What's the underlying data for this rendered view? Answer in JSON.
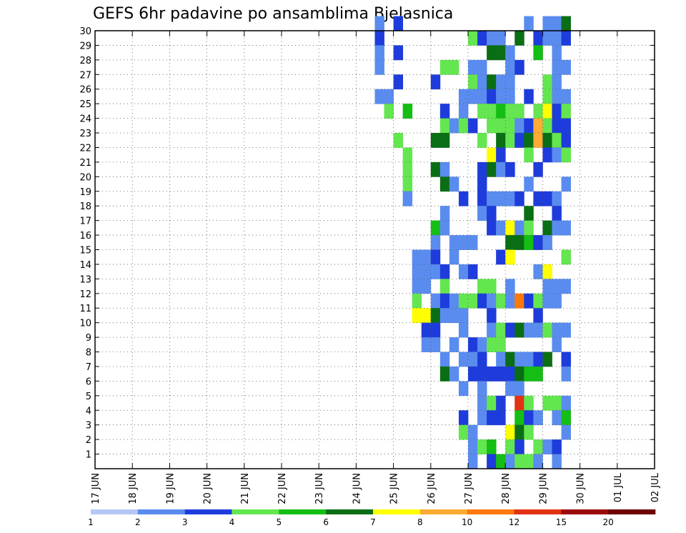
{
  "chart_data": {
    "type": "heatmap",
    "title": "GEFS 6hr padavine po ansamblima Bjelasnica",
    "x_tick_labels": [
      "17 JUN",
      "18 JUN",
      "19 JUN",
      "20 JUN",
      "21 JUN",
      "22 JUN",
      "23 JUN",
      "24 JUN",
      "25 JUN",
      "26 JUN",
      "27 JUN",
      "28 JUN",
      "29 JUN",
      "30 JUN",
      "01 JUL",
      "02 JUL"
    ],
    "y_tick_labels": [
      "1",
      "2",
      "3",
      "4",
      "5",
      "6",
      "7",
      "8",
      "9",
      "10",
      "11",
      "12",
      "13",
      "14",
      "15",
      "16",
      "17",
      "18",
      "19",
      "20",
      "21",
      "22",
      "23",
      "24",
      "25",
      "26",
      "27",
      "28",
      "29",
      "30"
    ],
    "x_range": [
      "17 JUN 00z",
      "02 JUL 00z"
    ],
    "y_range": [
      0,
      30
    ],
    "grid": true,
    "color_scale": {
      "labels": [
        "1",
        "2",
        "3",
        "4",
        "5",
        "6",
        "7",
        "8",
        "10",
        "12",
        "15",
        "20"
      ],
      "colors": [
        "#b4c8f5",
        "#5a8cf0",
        "#1e3cdc",
        "#64e650",
        "#14be14",
        "#0a6e14",
        "#ffff00",
        "#ffaa32",
        "#ff780a",
        "#e13214",
        "#9b0a0a",
        "#6e0000"
      ]
    },
    "cells": [
      [
        2,
        30,
        1
      ],
      [
        2,
        29,
        2
      ],
      [
        2,
        28,
        1
      ],
      [
        2,
        27,
        1
      ],
      [
        2,
        25,
        1
      ],
      [
        3,
        25,
        1
      ],
      [
        3,
        24,
        3
      ],
      [
        4,
        30,
        2
      ],
      [
        4,
        28,
        2
      ],
      [
        4,
        26,
        2
      ],
      [
        4,
        22,
        3
      ],
      [
        5,
        24,
        4
      ],
      [
        5,
        21,
        3
      ],
      [
        5,
        20,
        3
      ],
      [
        5,
        19,
        3
      ],
      [
        5,
        18,
        1
      ],
      [
        6,
        14,
        1
      ],
      [
        6,
        13,
        1
      ],
      [
        6,
        12,
        1
      ],
      [
        6,
        11,
        3
      ],
      [
        6,
        10,
        6
      ],
      [
        7,
        14,
        1
      ],
      [
        7,
        13,
        1
      ],
      [
        7,
        12,
        1
      ],
      [
        7,
        10,
        6
      ],
      [
        7,
        9,
        2
      ],
      [
        7,
        8,
        1
      ],
      [
        8,
        26,
        2
      ],
      [
        8,
        22,
        5
      ],
      [
        8,
        20,
        5
      ],
      [
        8,
        16,
        4
      ],
      [
        8,
        15,
        1
      ],
      [
        8,
        14,
        2
      ],
      [
        8,
        13,
        1
      ],
      [
        8,
        11,
        1
      ],
      [
        8,
        10,
        5
      ],
      [
        8,
        9,
        2
      ],
      [
        8,
        8,
        1
      ],
      [
        9,
        27,
        3
      ],
      [
        9,
        24,
        2
      ],
      [
        9,
        23,
        3
      ],
      [
        9,
        22,
        5
      ],
      [
        9,
        20,
        1
      ],
      [
        9,
        19,
        5
      ],
      [
        9,
        17,
        1
      ],
      [
        9,
        16,
        1
      ],
      [
        9,
        13,
        2
      ],
      [
        9,
        12,
        3
      ],
      [
        9,
        11,
        2
      ],
      [
        9,
        10,
        1
      ],
      [
        9,
        7,
        1
      ],
      [
        9,
        6,
        5
      ],
      [
        10,
        27,
        3
      ],
      [
        10,
        23,
        1
      ],
      [
        10,
        19,
        1
      ],
      [
        10,
        15,
        1
      ],
      [
        10,
        14,
        1
      ],
      [
        10,
        11,
        1
      ],
      [
        10,
        10,
        1
      ],
      [
        10,
        8,
        1
      ],
      [
        10,
        6,
        1
      ],
      [
        11,
        25,
        1
      ],
      [
        11,
        24,
        1
      ],
      [
        11,
        23,
        3
      ],
      [
        11,
        18,
        2
      ],
      [
        11,
        15,
        1
      ],
      [
        11,
        13,
        1
      ],
      [
        11,
        11,
        3
      ],
      [
        11,
        10,
        1
      ],
      [
        11,
        9,
        1
      ],
      [
        11,
        7,
        1
      ],
      [
        11,
        5,
        1
      ],
      [
        11,
        3,
        2
      ],
      [
        11,
        2,
        3
      ],
      [
        12,
        29,
        3
      ],
      [
        12,
        27,
        1
      ],
      [
        12,
        26,
        3
      ],
      [
        12,
        25,
        1
      ],
      [
        12,
        23,
        2
      ],
      [
        12,
        15,
        1
      ],
      [
        12,
        13,
        2
      ],
      [
        12,
        11,
        3
      ],
      [
        12,
        8,
        2
      ],
      [
        12,
        7,
        1
      ],
      [
        12,
        6,
        2
      ],
      [
        12,
        2,
        1
      ],
      [
        12,
        1,
        1
      ],
      [
        12,
        0,
        1
      ],
      [
        13,
        29,
        2
      ],
      [
        13,
        27,
        1
      ],
      [
        13,
        26,
        1
      ],
      [
        13,
        25,
        1
      ],
      [
        13,
        24,
        3
      ],
      [
        13,
        22,
        3
      ],
      [
        13,
        20,
        2
      ],
      [
        13,
        19,
        2
      ],
      [
        13,
        18,
        2
      ],
      [
        13,
        17,
        1
      ],
      [
        13,
        12,
        3
      ],
      [
        13,
        11,
        2
      ],
      [
        13,
        8,
        1
      ],
      [
        13,
        7,
        2
      ],
      [
        13,
        6,
        2
      ],
      [
        13,
        5,
        1
      ],
      [
        13,
        4,
        1
      ],
      [
        13,
        3,
        1
      ],
      [
        13,
        1,
        3
      ],
      [
        14,
        29,
        1
      ],
      [
        14,
        28,
        5
      ],
      [
        14,
        26,
        5
      ],
      [
        14,
        25,
        2
      ],
      [
        14,
        24,
        3
      ],
      [
        14,
        23,
        3
      ],
      [
        14,
        21,
        6
      ],
      [
        14,
        20,
        5
      ],
      [
        14,
        18,
        1
      ],
      [
        14,
        17,
        2
      ],
      [
        14,
        16,
        2
      ],
      [
        14,
        12,
        3
      ],
      [
        14,
        11,
        1
      ],
      [
        14,
        10,
        2
      ],
      [
        14,
        9,
        1
      ],
      [
        14,
        8,
        3
      ],
      [
        14,
        6,
        2
      ],
      [
        14,
        4,
        3
      ],
      [
        14,
        3,
        2
      ],
      [
        14,
        1,
        4
      ],
      [
        14,
        0,
        2
      ],
      [
        15,
        29,
        1
      ],
      [
        15,
        28,
        5
      ],
      [
        15,
        26,
        1
      ],
      [
        15,
        25,
        1
      ],
      [
        15,
        24,
        4
      ],
      [
        15,
        23,
        3
      ],
      [
        15,
        22,
        5
      ],
      [
        15,
        21,
        2
      ],
      [
        15,
        20,
        1
      ],
      [
        15,
        18,
        1
      ],
      [
        15,
        16,
        1
      ],
      [
        15,
        14,
        2
      ],
      [
        15,
        11,
        3
      ],
      [
        15,
        9,
        3
      ],
      [
        15,
        8,
        3
      ],
      [
        15,
        7,
        1
      ],
      [
        15,
        6,
        2
      ],
      [
        15,
        4,
        2
      ],
      [
        15,
        3,
        2
      ],
      [
        15,
        0,
        4
      ],
      [
        16,
        28,
        1
      ],
      [
        16,
        27,
        1
      ],
      [
        16,
        26,
        1
      ],
      [
        16,
        25,
        1
      ],
      [
        16,
        24,
        3
      ],
      [
        16,
        23,
        3
      ],
      [
        16,
        22,
        3
      ],
      [
        16,
        20,
        2
      ],
      [
        16,
        18,
        1
      ],
      [
        16,
        16,
        6
      ],
      [
        16,
        15,
        5
      ],
      [
        16,
        14,
        6
      ],
      [
        16,
        12,
        1
      ],
      [
        16,
        11,
        1
      ],
      [
        16,
        9,
        2
      ],
      [
        16,
        7,
        5
      ],
      [
        16,
        6,
        2
      ],
      [
        16,
        5,
        1
      ],
      [
        16,
        2,
        6
      ],
      [
        16,
        1,
        3
      ],
      [
        16,
        0,
        1
      ],
      [
        17,
        29,
        5
      ],
      [
        17,
        27,
        2
      ],
      [
        17,
        24,
        3
      ],
      [
        17,
        23,
        1
      ],
      [
        17,
        22,
        2
      ],
      [
        17,
        18,
        2
      ],
      [
        17,
        16,
        1
      ],
      [
        17,
        15,
        5
      ],
      [
        17,
        11,
        8
      ],
      [
        17,
        9,
        5
      ],
      [
        17,
        7,
        1
      ],
      [
        17,
        6,
        5
      ],
      [
        17,
        5,
        1
      ],
      [
        17,
        4,
        9
      ],
      [
        17,
        3,
        4
      ],
      [
        17,
        2,
        5
      ],
      [
        17,
        1,
        2
      ],
      [
        17,
        0,
        3
      ],
      [
        18,
        30,
        1
      ],
      [
        18,
        25,
        2
      ],
      [
        18,
        23,
        2
      ],
      [
        18,
        22,
        5
      ],
      [
        18,
        21,
        3
      ],
      [
        18,
        19,
        1
      ],
      [
        18,
        17,
        5
      ],
      [
        18,
        16,
        3
      ],
      [
        18,
        15,
        4
      ],
      [
        18,
        11,
        2
      ],
      [
        18,
        9,
        1
      ],
      [
        18,
        7,
        1
      ],
      [
        18,
        6,
        4
      ],
      [
        18,
        4,
        3
      ],
      [
        18,
        3,
        2
      ],
      [
        18,
        2,
        3
      ],
      [
        18,
        0,
        3
      ],
      [
        19,
        29,
        2
      ],
      [
        19,
        28,
        4
      ],
      [
        19,
        24,
        3
      ],
      [
        19,
        23,
        7
      ],
      [
        19,
        22,
        7
      ],
      [
        19,
        20,
        2
      ],
      [
        19,
        18,
        2
      ],
      [
        19,
        15,
        2
      ],
      [
        19,
        13,
        1
      ],
      [
        19,
        11,
        3
      ],
      [
        19,
        10,
        2
      ],
      [
        19,
        9,
        1
      ],
      [
        19,
        7,
        2
      ],
      [
        19,
        6,
        4
      ],
      [
        19,
        3,
        1
      ],
      [
        19,
        1,
        3
      ],
      [
        19,
        0,
        1
      ],
      [
        20,
        30,
        1
      ],
      [
        20,
        29,
        1
      ],
      [
        20,
        26,
        3
      ],
      [
        20,
        25,
        3
      ],
      [
        20,
        24,
        6
      ],
      [
        20,
        23,
        3
      ],
      [
        20,
        22,
        5
      ],
      [
        20,
        21,
        2
      ],
      [
        20,
        18,
        2
      ],
      [
        20,
        16,
        5
      ],
      [
        20,
        15,
        1
      ],
      [
        20,
        13,
        6
      ],
      [
        20,
        12,
        1
      ],
      [
        20,
        11,
        1
      ],
      [
        20,
        9,
        3
      ],
      [
        20,
        7,
        5
      ],
      [
        20,
        4,
        3
      ],
      [
        20,
        1,
        1
      ],
      [
        21,
        30,
        1
      ],
      [
        21,
        29,
        1
      ],
      [
        21,
        28,
        1
      ],
      [
        21,
        27,
        1
      ],
      [
        21,
        26,
        1
      ],
      [
        21,
        25,
        1
      ],
      [
        21,
        24,
        2
      ],
      [
        21,
        23,
        2
      ],
      [
        21,
        22,
        3
      ],
      [
        21,
        21,
        1
      ],
      [
        21,
        18,
        1
      ],
      [
        21,
        17,
        2
      ],
      [
        21,
        16,
        1
      ],
      [
        21,
        12,
        1
      ],
      [
        21,
        11,
        1
      ],
      [
        21,
        9,
        1
      ],
      [
        21,
        8,
        1
      ],
      [
        21,
        4,
        3
      ],
      [
        21,
        3,
        1
      ],
      [
        21,
        1,
        2
      ],
      [
        21,
        0,
        1
      ],
      [
        22,
        30,
        5
      ],
      [
        22,
        29,
        2
      ],
      [
        22,
        27,
        1
      ],
      [
        22,
        25,
        1
      ],
      [
        22,
        24,
        3
      ],
      [
        22,
        23,
        2
      ],
      [
        22,
        22,
        2
      ],
      [
        22,
        21,
        3
      ],
      [
        22,
        19,
        1
      ],
      [
        22,
        16,
        1
      ],
      [
        22,
        14,
        3
      ],
      [
        22,
        12,
        1
      ],
      [
        22,
        9,
        1
      ],
      [
        22,
        7,
        2
      ],
      [
        22,
        6,
        1
      ],
      [
        22,
        4,
        1
      ],
      [
        22,
        3,
        4
      ],
      [
        22,
        2,
        1
      ]
    ]
  }
}
